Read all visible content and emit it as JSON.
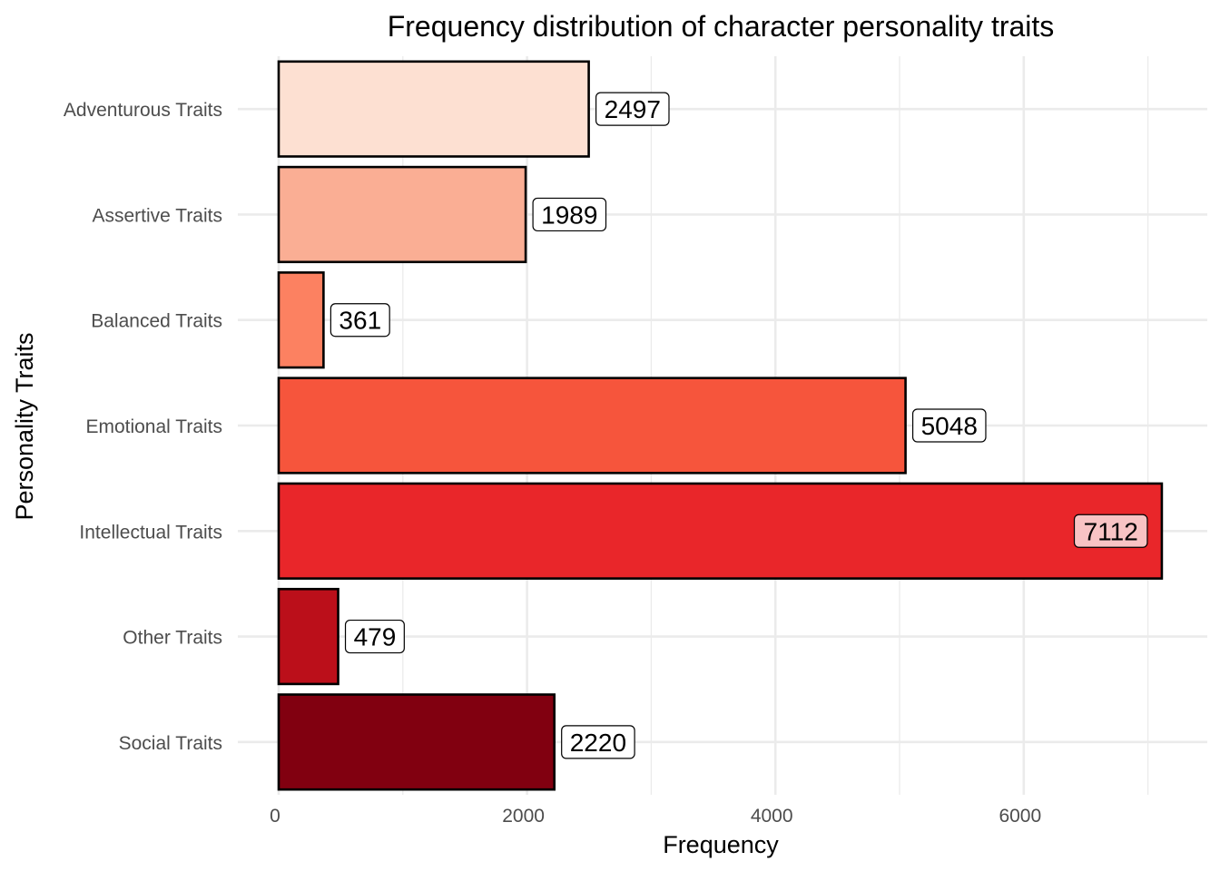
{
  "chart_data": {
    "type": "bar",
    "orientation": "horizontal",
    "title": "Frequency distribution of character personality traits",
    "xlabel": "Frequency",
    "ylabel": "Personality Traits",
    "categories": [
      "Adventurous Traits",
      "Assertive Traits",
      "Balanced Traits",
      "Emotional Traits",
      "Intellectual Traits",
      "Other Traits",
      "Social Traits"
    ],
    "values": [
      2497,
      1989,
      361,
      5048,
      7112,
      479,
      2220
    ],
    "data_labels": [
      "2497",
      "1989",
      "361",
      "5048",
      "7112",
      "479",
      "2220"
    ],
    "colors": [
      "#fde0d2",
      "#faae94",
      "#fc8161",
      "#f6553c",
      "#e9262a",
      "#bb0f1a",
      "#810010"
    ],
    "label_fill": [
      "#ffffff",
      "#ffffff",
      "#ffffff",
      "#ffffff",
      "#f8c3c4",
      "#ffffff",
      "#ffffff"
    ],
    "xlim": [
      0,
      7467
    ],
    "xticks": [
      0,
      2000,
      4000,
      6000
    ],
    "xtick_labels": [
      "0",
      "2000",
      "4000",
      "6000"
    ],
    "grid": true,
    "legend": "none"
  }
}
